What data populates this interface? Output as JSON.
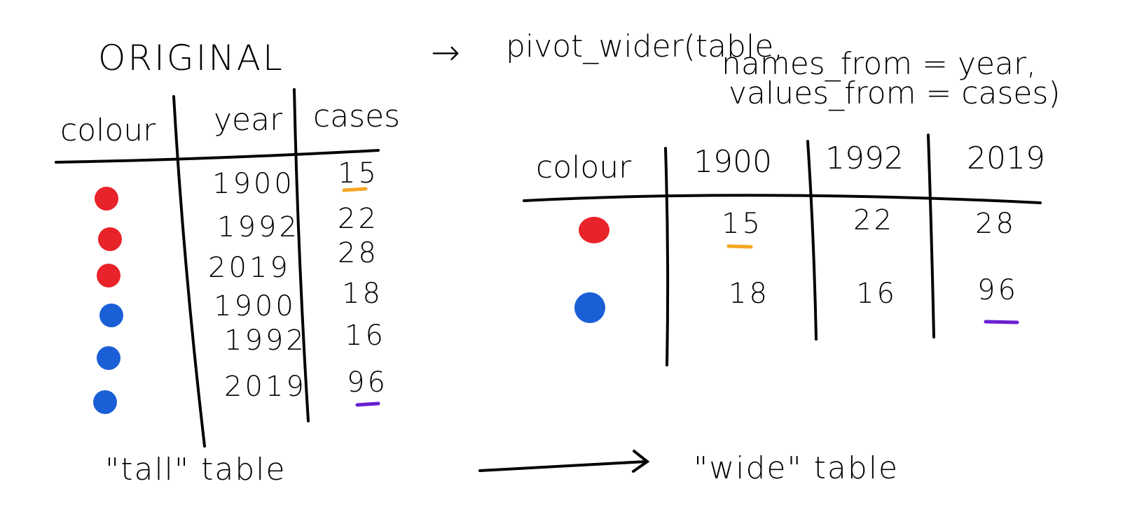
{
  "titles": {
    "original": "ORIGINAL",
    "arrow_glyph": "→",
    "code_line1": "pivot_wider(table,",
    "code_line2": "names_from = year,",
    "code_line3": "values_from = cases)"
  },
  "tall_table": {
    "headers": [
      "colour",
      "year",
      "cases"
    ],
    "rows": [
      {
        "colour": "red",
        "year": "1900",
        "cases": "15"
      },
      {
        "colour": "red",
        "year": "1992",
        "cases": "22"
      },
      {
        "colour": "red",
        "year": "2019",
        "cases": "28"
      },
      {
        "colour": "blue",
        "year": "1900",
        "cases": "18"
      },
      {
        "colour": "blue",
        "year": "1992",
        "cases": "16"
      },
      {
        "colour": "blue",
        "year": "2019",
        "cases": "96"
      }
    ],
    "caption": "\"tall\" table"
  },
  "wide_table": {
    "headers": [
      "colour",
      "1900",
      "1992",
      "2019"
    ],
    "rows": [
      {
        "colour": "red",
        "values": [
          "15",
          "22",
          "28"
        ]
      },
      {
        "colour": "blue",
        "values": [
          "18",
          "16",
          "96"
        ]
      }
    ],
    "caption": "\"wide\" table"
  },
  "colors": {
    "red": "#e8232a",
    "blue": "#1a5fd6",
    "highlight_orange": "#f5a623",
    "highlight_purple": "#6a1fd1",
    "ink": "#000000"
  }
}
